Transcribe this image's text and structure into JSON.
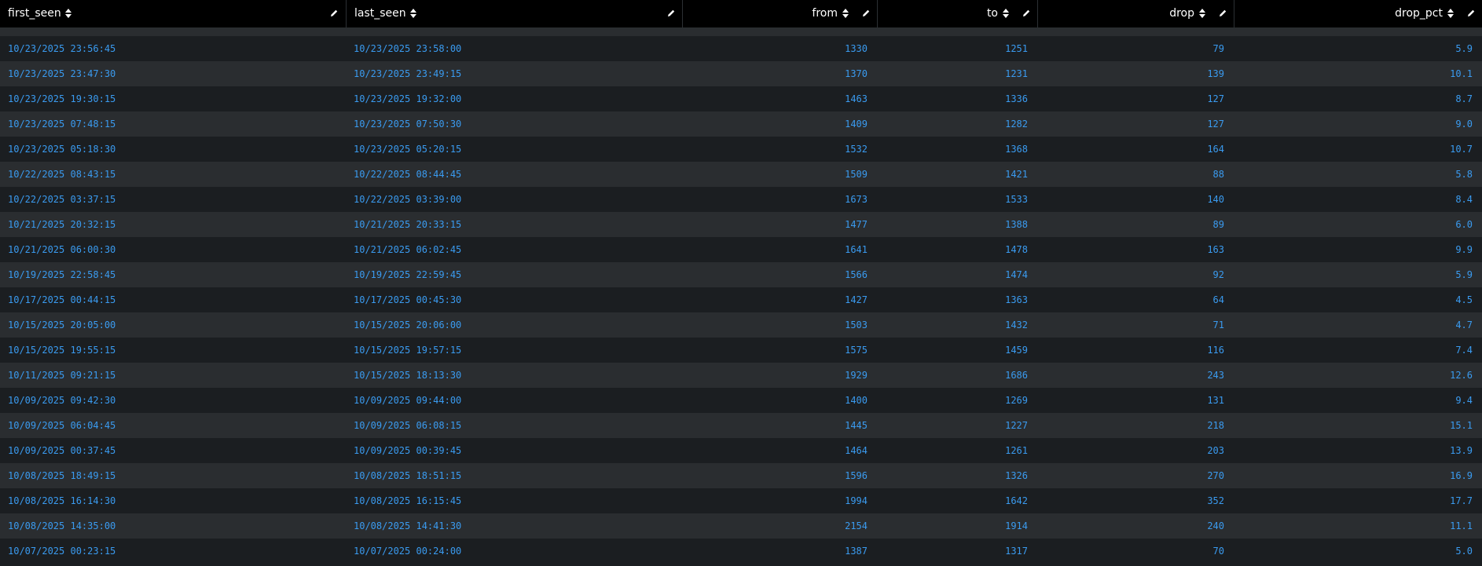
{
  "table": {
    "headers": [
      "first_seen",
      "last_seen",
      "from",
      "to",
      "drop",
      "drop_pct"
    ],
    "rows": [
      [
        "10/23/2025 23:56:45",
        "10/23/2025 23:58:00",
        "1330",
        "1251",
        "79",
        "5.9"
      ],
      [
        "10/23/2025 23:47:30",
        "10/23/2025 23:49:15",
        "1370",
        "1231",
        "139",
        "10.1"
      ],
      [
        "10/23/2025 19:30:15",
        "10/23/2025 19:32:00",
        "1463",
        "1336",
        "127",
        "8.7"
      ],
      [
        "10/23/2025 07:48:15",
        "10/23/2025 07:50:30",
        "1409",
        "1282",
        "127",
        "9.0"
      ],
      [
        "10/23/2025 05:18:30",
        "10/23/2025 05:20:15",
        "1532",
        "1368",
        "164",
        "10.7"
      ],
      [
        "10/22/2025 08:43:15",
        "10/22/2025 08:44:45",
        "1509",
        "1421",
        "88",
        "5.8"
      ],
      [
        "10/22/2025 03:37:15",
        "10/22/2025 03:39:00",
        "1673",
        "1533",
        "140",
        "8.4"
      ],
      [
        "10/21/2025 20:32:15",
        "10/21/2025 20:33:15",
        "1477",
        "1388",
        "89",
        "6.0"
      ],
      [
        "10/21/2025 06:00:30",
        "10/21/2025 06:02:45",
        "1641",
        "1478",
        "163",
        "9.9"
      ],
      [
        "10/19/2025 22:58:45",
        "10/19/2025 22:59:45",
        "1566",
        "1474",
        "92",
        "5.9"
      ],
      [
        "10/17/2025 00:44:15",
        "10/17/2025 00:45:30",
        "1427",
        "1363",
        "64",
        "4.5"
      ],
      [
        "10/15/2025 20:05:00",
        "10/15/2025 20:06:00",
        "1503",
        "1432",
        "71",
        "4.7"
      ],
      [
        "10/15/2025 19:55:15",
        "10/15/2025 19:57:15",
        "1575",
        "1459",
        "116",
        "7.4"
      ],
      [
        "10/11/2025 09:21:15",
        "10/15/2025 18:13:30",
        "1929",
        "1686",
        "243",
        "12.6"
      ],
      [
        "10/09/2025 09:42:30",
        "10/09/2025 09:44:00",
        "1400",
        "1269",
        "131",
        "9.4"
      ],
      [
        "10/09/2025 06:04:45",
        "10/09/2025 06:08:15",
        "1445",
        "1227",
        "218",
        "15.1"
      ],
      [
        "10/09/2025 00:37:45",
        "10/09/2025 00:39:45",
        "1464",
        "1261",
        "203",
        "13.9"
      ],
      [
        "10/08/2025 18:49:15",
        "10/08/2025 18:51:15",
        "1596",
        "1326",
        "270",
        "16.9"
      ],
      [
        "10/08/2025 16:14:30",
        "10/08/2025 16:15:45",
        "1994",
        "1642",
        "352",
        "17.7"
      ],
      [
        "10/08/2025 14:35:00",
        "10/08/2025 14:41:30",
        "2154",
        "1914",
        "240",
        "11.1"
      ],
      [
        "10/07/2025 00:23:15",
        "10/07/2025 00:24:00",
        "1387",
        "1317",
        "70",
        "5.0"
      ]
    ]
  }
}
